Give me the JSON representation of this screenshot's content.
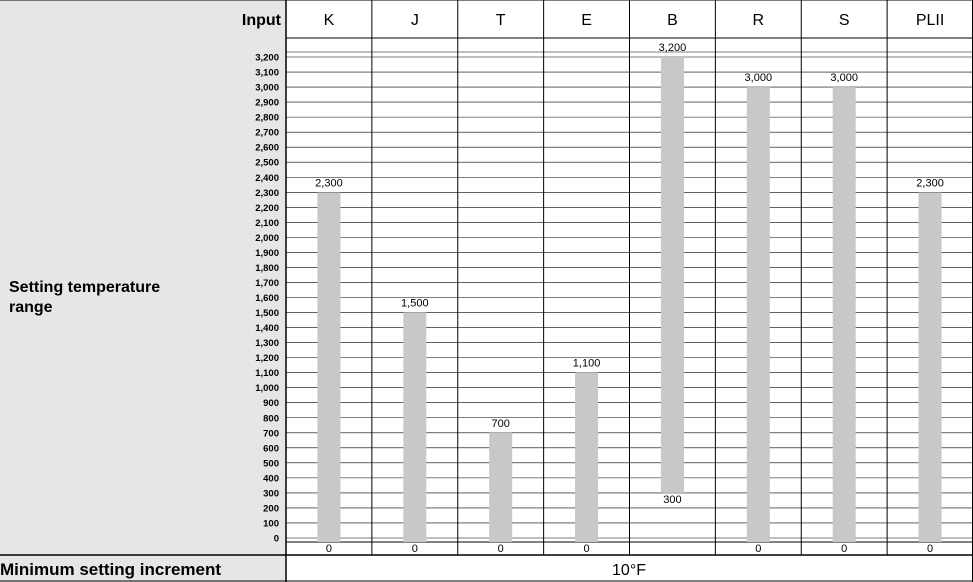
{
  "chart_data": {
    "type": "bar",
    "header_label": "Input",
    "row_label_line1": "Setting temperature",
    "row_label_line2": "range",
    "footer_label": "Minimum setting increment",
    "footer_value": "10°F",
    "categories": [
      "K",
      "J",
      "T",
      "E",
      "B",
      "R",
      "S",
      "PLII"
    ],
    "ranges": [
      {
        "min": 0,
        "max": 2300,
        "min_label": "0",
        "max_label": "2,300"
      },
      {
        "min": 0,
        "max": 1500,
        "min_label": "0",
        "max_label": "1,500"
      },
      {
        "min": 0,
        "max": 700,
        "min_label": "0",
        "max_label": "700"
      },
      {
        "min": 0,
        "max": 1100,
        "min_label": "0",
        "max_label": "1,100"
      },
      {
        "min": 300,
        "max": 3200,
        "min_label": "300",
        "max_label": "3,200"
      },
      {
        "min": 0,
        "max": 3000,
        "min_label": "0",
        "max_label": "3,000"
      },
      {
        "min": 0,
        "max": 3000,
        "min_label": "0",
        "max_label": "3,000"
      },
      {
        "min": 0,
        "max": 2300,
        "min_label": "0",
        "max_label": "2,300"
      }
    ],
    "y_ticks": [
      "0",
      "100",
      "200",
      "300",
      "400",
      "500",
      "600",
      "700",
      "800",
      "900",
      "1,000",
      "1,100",
      "1,200",
      "1,300",
      "1,400",
      "1,500",
      "1,600",
      "1,700",
      "1,800",
      "1,900",
      "2,000",
      "2,100",
      "2,200",
      "2,300",
      "2,400",
      "2,500",
      "2,600",
      "2,700",
      "2,800",
      "2,900",
      "3,000",
      "3,100",
      "3,200"
    ],
    "ylim": [
      0,
      3200
    ],
    "grid": true,
    "colors": {
      "bar": "#c8c8c8",
      "label_bg": "#e6e6e6",
      "grid": "#000000"
    }
  }
}
